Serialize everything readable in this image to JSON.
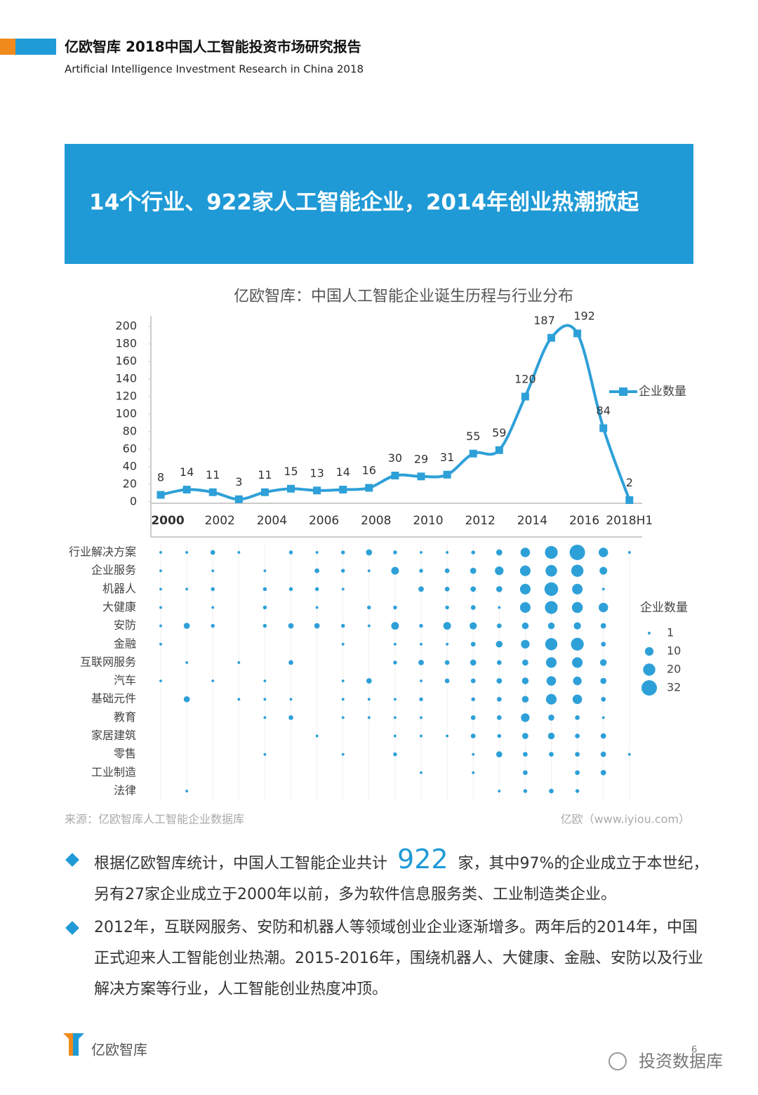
{
  "header": {
    "title": "亿欧智库 2018中国人工智能投资市场研究报告",
    "subtitle": "Artificial Intelligence Investment Research in China 2018"
  },
  "banner": "14个行业、922家人工智能企业，2014年创业热潮掀起",
  "chart_data": [
    {
      "type": "line",
      "title": "亿欧智库：中国人工智能企业诞生历程与行业分布",
      "categories": [
        "2000",
        null,
        "2002",
        null,
        "2004",
        null,
        "2006",
        null,
        "2008",
        null,
        "2010",
        null,
        "2012",
        null,
        "2014",
        null,
        "2016",
        null,
        "2018H1"
      ],
      "series": [
        {
          "name": "企业数量",
          "color": "#2ea0d8",
          "values": [
            8,
            14,
            11,
            3,
            11,
            15,
            13,
            14,
            16,
            30,
            29,
            31,
            55,
            59,
            120,
            187,
            192,
            84,
            2
          ]
        }
      ],
      "ylim": [
        0,
        200
      ],
      "yticks": [
        0,
        20,
        40,
        60,
        80,
        100,
        120,
        140,
        160,
        180,
        200
      ],
      "legend": "right"
    },
    {
      "type": "bubble",
      "legend_title": "企业数量",
      "color": "#2ea0d8",
      "categories": [
        "行业解决方案",
        "企业服务",
        "机器人",
        "大健康",
        "安防",
        "金融",
        "互联网服务",
        "汽车",
        "基础元件",
        "教育",
        "家居建筑",
        "零售",
        "工业制造",
        "法律"
      ],
      "values": [
        [
          1,
          1,
          3,
          1,
          null,
          2,
          1,
          2,
          5,
          2,
          1,
          1,
          2,
          5,
          12,
          22,
          32,
          12,
          1
        ],
        [
          1,
          null,
          1,
          null,
          1,
          null,
          3,
          2,
          1,
          8,
          2,
          3,
          5,
          10,
          15,
          18,
          20,
          8,
          null
        ],
        [
          1,
          1,
          2,
          null,
          2,
          2,
          2,
          1,
          null,
          null,
          4,
          3,
          4,
          5,
          15,
          25,
          15,
          1,
          null
        ],
        [
          1,
          null,
          1,
          null,
          2,
          null,
          1,
          null,
          2,
          2,
          null,
          2,
          3,
          1,
          15,
          22,
          16,
          12,
          null
        ],
        [
          1,
          5,
          2,
          null,
          2,
          4,
          4,
          2,
          1,
          8,
          2,
          8,
          7,
          3,
          6,
          6,
          7,
          4,
          null
        ],
        [
          1,
          null,
          null,
          null,
          null,
          null,
          null,
          1,
          null,
          1,
          1,
          1,
          3,
          6,
          10,
          20,
          22,
          3,
          null
        ],
        [
          null,
          1,
          null,
          1,
          null,
          3,
          null,
          null,
          null,
          2,
          4,
          3,
          5,
          3,
          5,
          15,
          15,
          6,
          null
        ],
        [
          1,
          null,
          1,
          null,
          1,
          null,
          null,
          1,
          4,
          null,
          1,
          3,
          3,
          4,
          6,
          12,
          10,
          5,
          null
        ],
        [
          null,
          5,
          null,
          1,
          1,
          1,
          null,
          1,
          1,
          1,
          2,
          null,
          2,
          3,
          6,
          15,
          12,
          3,
          null
        ],
        [
          null,
          null,
          null,
          null,
          1,
          3,
          null,
          1,
          1,
          1,
          1,
          null,
          3,
          3,
          10,
          5,
          3,
          1,
          null
        ],
        [
          null,
          null,
          null,
          null,
          null,
          null,
          1,
          null,
          null,
          1,
          1,
          1,
          3,
          2,
          5,
          6,
          3,
          4,
          null
        ],
        [
          null,
          null,
          null,
          null,
          1,
          null,
          null,
          1,
          null,
          2,
          null,
          null,
          1,
          5,
          3,
          3,
          3,
          4,
          1
        ],
        [
          null,
          null,
          null,
          null,
          null,
          null,
          null,
          null,
          null,
          null,
          1,
          null,
          1,
          null,
          3,
          null,
          3,
          4,
          null
        ],
        [
          null,
          1,
          null,
          null,
          null,
          null,
          null,
          null,
          null,
          null,
          null,
          null,
          null,
          1,
          2,
          3,
          2,
          null,
          null
        ]
      ],
      "size_legend": [
        1,
        10,
        20,
        32
      ]
    }
  ],
  "source": "来源：亿欧智库人工智能企业数据库",
  "credit": "亿欧（www.iyiou.com）",
  "paragraphs": [
    [
      "根据亿欧智库统计，中国人工智能企业共计",
      "922",
      "家，其中97%的企业成立于本世纪，另有27家企业成立于2000年以前，多为软件信息服务类、工业制造类企业。"
    ],
    [
      "2012年，互联网服务、安防和机器人等领域创业企业逐渐增多。两年后的2014年，中国正式迎来人工智能创业热潮。2015-2016年，围绕机器人、大健康、金融、安防以及行业解决方案等行业，人工智能创业热度冲顶。"
    ]
  ],
  "footer": {
    "logo": "亿欧智库",
    "watermark": "投资数据库",
    "page": "6"
  }
}
